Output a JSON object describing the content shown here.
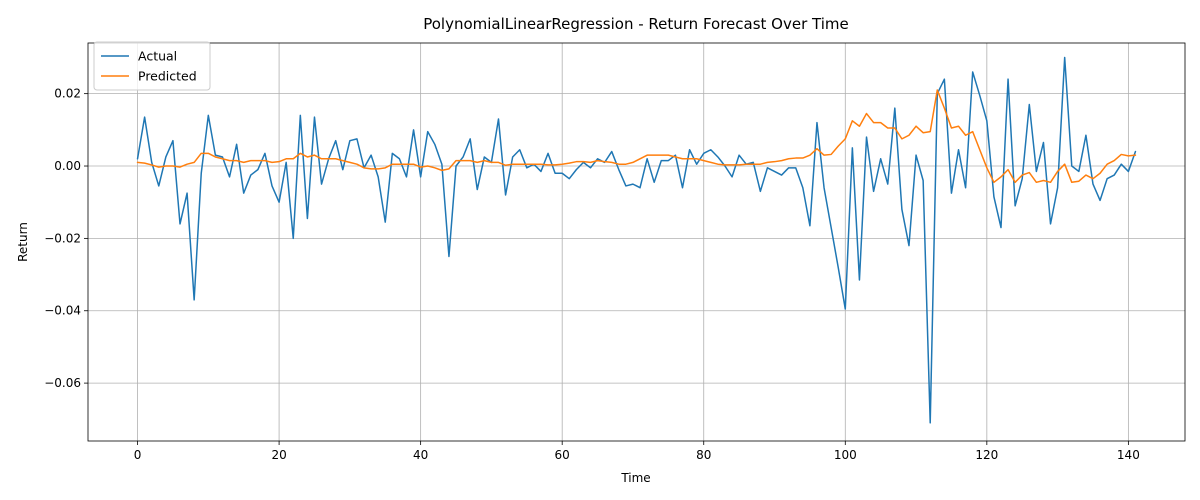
{
  "chart_data": {
    "type": "line",
    "title": "PolynomialLinearRegression - Return Forecast Over Time",
    "xlabel": "Time",
    "ylabel": "Return",
    "xlim": [
      -7,
      148
    ],
    "ylim": [
      -0.076,
      0.034
    ],
    "xticks": [
      0,
      20,
      40,
      60,
      80,
      100,
      120,
      140
    ],
    "xtick_labels": [
      "0",
      "20",
      "40",
      "60",
      "80",
      "100",
      "120",
      "140"
    ],
    "yticks": [
      -0.06,
      -0.04,
      -0.02,
      0.0,
      0.02
    ],
    "ytick_labels": [
      "−0.06",
      "−0.04",
      "−0.02",
      "0.00",
      "0.02"
    ],
    "grid": true,
    "legend_position": "top-left",
    "series": [
      {
        "name": "Actual",
        "color": "#1f77b4",
        "values": [
          0.002,
          0.0135,
          0.001,
          -0.0055,
          0.0025,
          0.007,
          -0.016,
          -0.0075,
          -0.037,
          -0.002,
          0.014,
          0.003,
          0.0025,
          -0.003,
          0.006,
          -0.0075,
          -0.0025,
          -0.001,
          0.0035,
          -0.0055,
          -0.01,
          0.001,
          -0.02,
          0.014,
          -0.0145,
          0.0135,
          -0.005,
          0.002,
          0.007,
          -0.001,
          0.007,
          0.0075,
          -0.0005,
          0.003,
          -0.003,
          -0.0155,
          0.0035,
          0.002,
          -0.003,
          0.01,
          -0.003,
          0.0095,
          0.006,
          0.0005,
          -0.025,
          0.0,
          0.0025,
          0.0075,
          -0.0065,
          0.0025,
          0.001,
          0.013,
          -0.008,
          0.0025,
          0.0045,
          -0.0005,
          0.0005,
          -0.0015,
          0.0035,
          -0.002,
          -0.002,
          -0.0035,
          -0.001,
          0.001,
          -0.0005,
          0.002,
          0.001,
          0.004,
          -0.001,
          -0.0055,
          -0.005,
          -0.006,
          0.002,
          -0.0045,
          0.0015,
          0.0015,
          0.003,
          -0.006,
          0.0045,
          0.0005,
          0.0035,
          0.0045,
          0.0025,
          0.0,
          -0.003,
          0.003,
          0.0005,
          0.001,
          -0.007,
          -0.0005,
          -0.0015,
          -0.0025,
          -0.0005,
          -0.0005,
          -0.006,
          -0.0165,
          0.012,
          -0.006,
          -0.017,
          -0.028,
          -0.0395,
          0.005,
          -0.0315,
          0.008,
          -0.007,
          0.002,
          -0.005,
          0.016,
          -0.012,
          -0.022,
          0.003,
          -0.004,
          -0.071,
          0.02,
          0.024,
          -0.0075,
          0.0045,
          -0.006,
          0.026,
          0.0195,
          0.0125,
          -0.0085,
          -0.017,
          0.024,
          -0.011,
          -0.0035,
          0.017,
          -0.0015,
          0.0065,
          -0.016,
          -0.006,
          0.03,
          0.0,
          -0.0015,
          0.0085,
          -0.005,
          -0.0095,
          -0.0035,
          -0.0025,
          0.0005,
          -0.0015,
          0.004
        ]
      },
      {
        "name": "Predicted",
        "color": "#ff7f0e",
        "values": [
          0.001,
          0.0008,
          0.0003,
          -0.0003,
          0.0,
          0.0,
          -0.0003,
          0.0005,
          0.001,
          0.0035,
          0.0035,
          0.0025,
          0.002,
          0.0015,
          0.0015,
          0.001,
          0.0015,
          0.0015,
          0.0015,
          0.001,
          0.0012,
          0.002,
          0.002,
          0.0035,
          0.0025,
          0.003,
          0.002,
          0.002,
          0.002,
          0.0015,
          0.001,
          0.0005,
          -0.0005,
          -0.0008,
          -0.0008,
          -0.0005,
          0.0005,
          0.0005,
          0.0005,
          0.0005,
          -0.0003,
          0.0,
          -0.0005,
          -0.0012,
          -0.0008,
          0.0015,
          0.0015,
          0.0015,
          0.001,
          0.0015,
          0.001,
          0.001,
          0.0002,
          0.0005,
          0.0005,
          0.0005,
          0.0005,
          0.0005,
          0.0003,
          0.0003,
          0.0005,
          0.0008,
          0.0012,
          0.0012,
          0.001,
          0.0015,
          0.0012,
          0.001,
          0.0005,
          0.0005,
          0.001,
          0.002,
          0.003,
          0.003,
          0.003,
          0.003,
          0.0025,
          0.002,
          0.002,
          0.002,
          0.0015,
          0.001,
          0.0005,
          0.0003,
          0.0003,
          0.0003,
          0.0005,
          0.0005,
          0.0005,
          0.001,
          0.0012,
          0.0015,
          0.002,
          0.0022,
          0.0022,
          0.003,
          0.0048,
          0.003,
          0.0032,
          0.0055,
          0.0075,
          0.0125,
          0.011,
          0.0145,
          0.012,
          0.012,
          0.0105,
          0.0105,
          0.0075,
          0.0085,
          0.011,
          0.0092,
          0.0095,
          0.021,
          0.016,
          0.0105,
          0.011,
          0.0085,
          0.0095,
          0.0045,
          -0.0005,
          -0.0045,
          -0.003,
          -0.001,
          -0.0045,
          -0.0025,
          -0.0018,
          -0.0045,
          -0.004,
          -0.0045,
          -0.0015,
          0.0005,
          -0.0045,
          -0.0042,
          -0.0025,
          -0.0035,
          -0.002,
          0.0005,
          0.0015,
          0.0032,
          0.0028,
          0.003
        ]
      }
    ]
  }
}
